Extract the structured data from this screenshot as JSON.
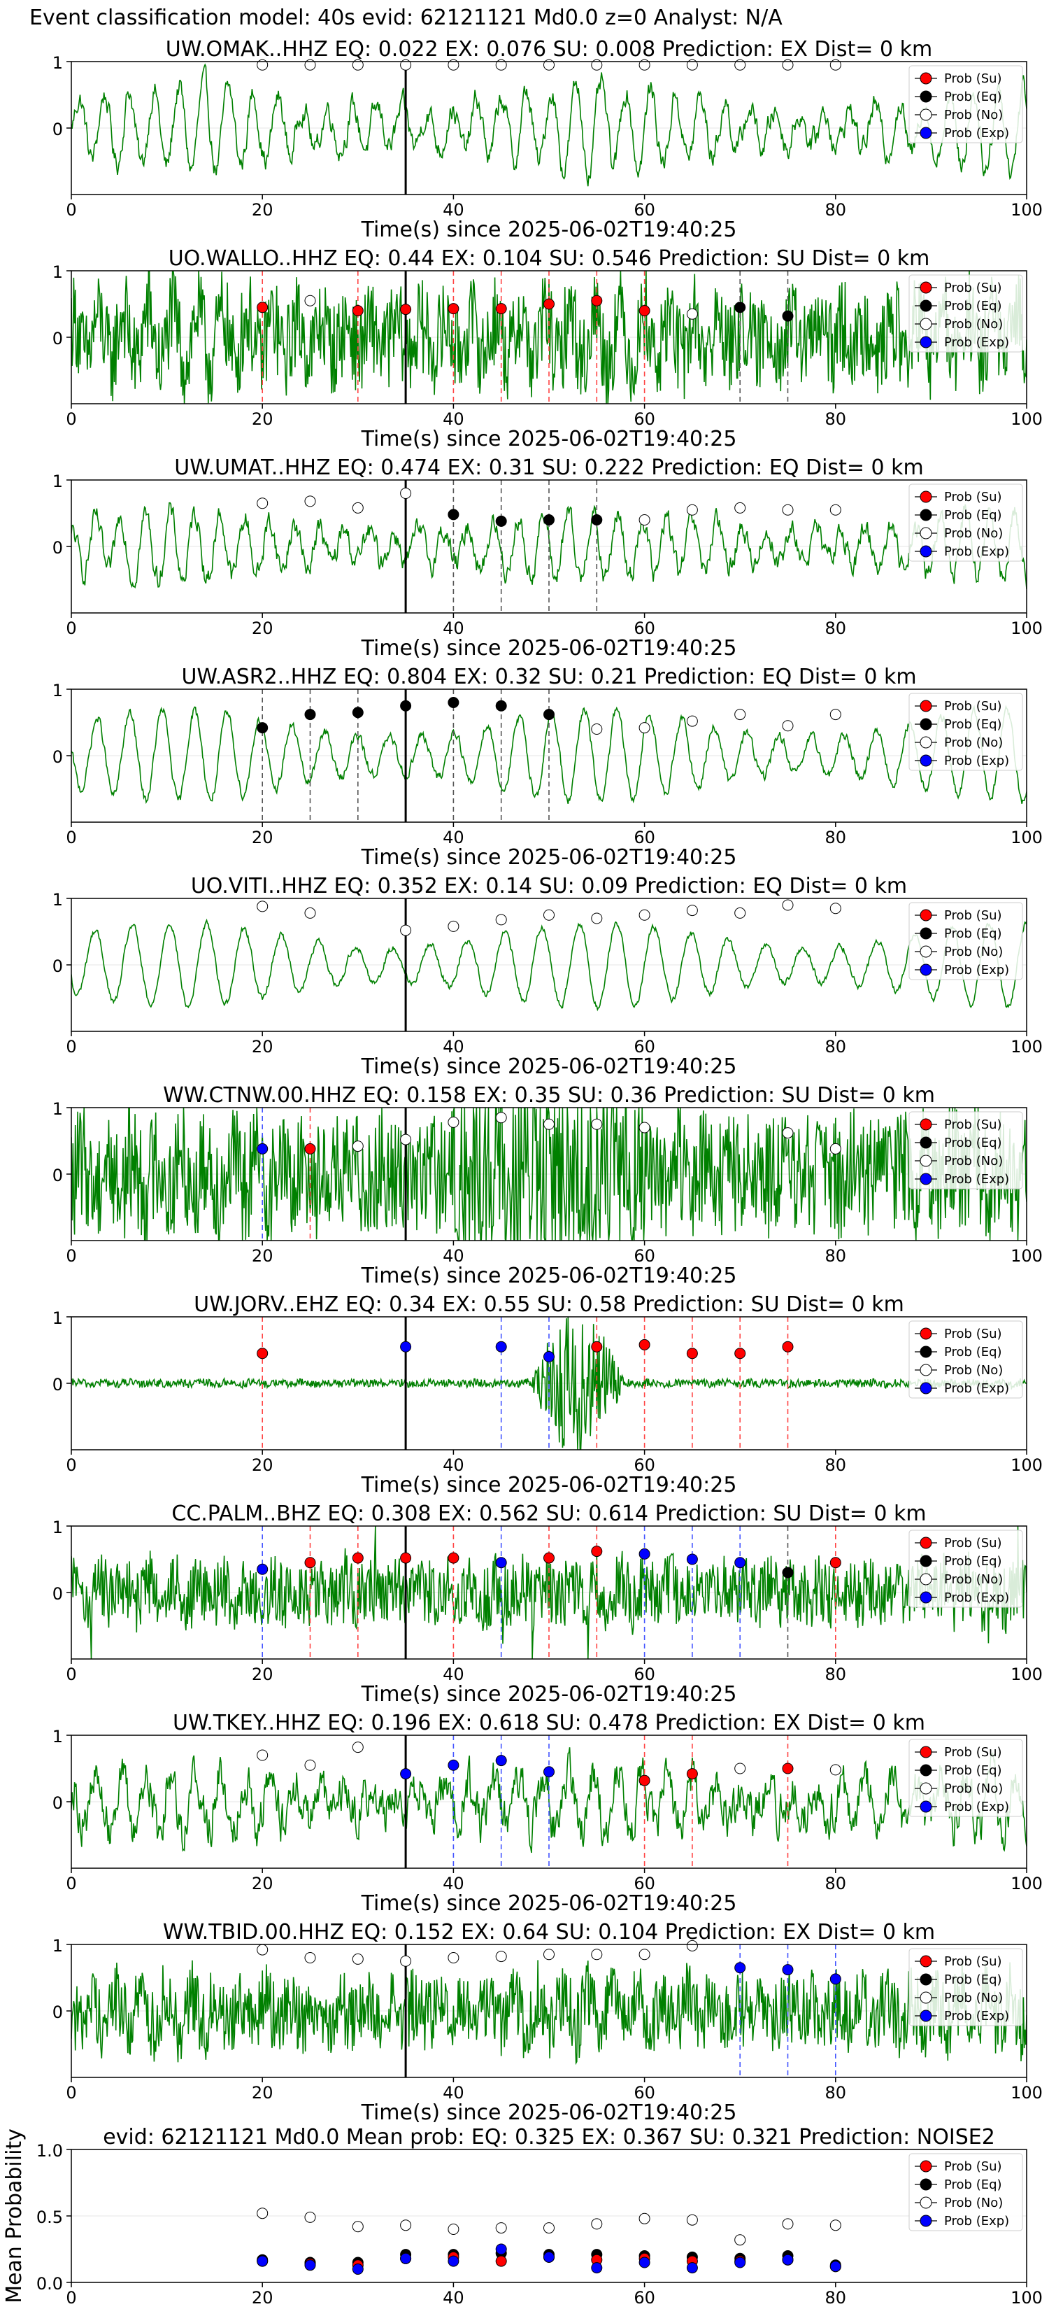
{
  "suptitle": "Event classification model: 40s evid: 62121121 Md0.0 z=0 Analyst: N/A",
  "colors": {
    "su": "#ff0000",
    "eq": "#000000",
    "no": "#ffffff",
    "exp": "#0000ff",
    "trace": "#008000"
  },
  "legend": [
    "Prob (Su)",
    "Prob (Eq)",
    "Prob (No)",
    "Prob (Exp)"
  ],
  "chart_data": [
    {
      "type": "line",
      "title": "UW.OMAK..HHZ   EQ: 0.022  EX: 0.076  SU: 0.008   Prediction: EX    Dist= 0 km",
      "xlabel": "Time(s) since 2025-06-02T19:40:25",
      "xlim": [
        0,
        100
      ],
      "ylim": [
        -1,
        1
      ],
      "xticks": [
        0,
        20,
        40,
        60,
        80,
        100
      ],
      "yticks": [
        0,
        1
      ],
      "trace": {
        "amp": 0.75,
        "noise": 0.55,
        "smooth": 4
      },
      "vline": 35,
      "points": [
        {
          "t": 20,
          "p": 0.95,
          "c": "no"
        },
        {
          "t": 25,
          "p": 0.95,
          "c": "no"
        },
        {
          "t": 30,
          "p": 0.95,
          "c": "no"
        },
        {
          "t": 35,
          "p": 0.95,
          "c": "no"
        },
        {
          "t": 40,
          "p": 0.95,
          "c": "no"
        },
        {
          "t": 45,
          "p": 0.95,
          "c": "no"
        },
        {
          "t": 50,
          "p": 0.95,
          "c": "no"
        },
        {
          "t": 55,
          "p": 0.95,
          "c": "no"
        },
        {
          "t": 60,
          "p": 0.95,
          "c": "no"
        },
        {
          "t": 65,
          "p": 0.95,
          "c": "no"
        },
        {
          "t": 70,
          "p": 0.95,
          "c": "no"
        },
        {
          "t": 75,
          "p": 0.95,
          "c": "no"
        },
        {
          "t": 80,
          "p": 0.95,
          "c": "no"
        }
      ]
    },
    {
      "type": "line",
      "title": "UO.WALLO..HHZ   EQ: 0.44  EX: 0.104  SU: 0.546   Prediction: SU    Dist= 0 km",
      "xlabel": "Time(s) since 2025-06-02T19:40:25",
      "xlim": [
        0,
        100
      ],
      "ylim": [
        -1,
        1
      ],
      "xticks": [
        0,
        20,
        40,
        60,
        80,
        100
      ],
      "yticks": [
        0,
        1
      ],
      "trace": {
        "amp": 0.4,
        "noise": 0.7,
        "smooth": 1
      },
      "vline": 35,
      "points": [
        {
          "t": 20,
          "p": 0.45,
          "c": "su"
        },
        {
          "t": 25,
          "p": 0.55,
          "c": "no"
        },
        {
          "t": 30,
          "p": 0.4,
          "c": "su"
        },
        {
          "t": 35,
          "p": 0.42,
          "c": "su"
        },
        {
          "t": 40,
          "p": 0.43,
          "c": "su"
        },
        {
          "t": 45,
          "p": 0.43,
          "c": "su"
        },
        {
          "t": 50,
          "p": 0.5,
          "c": "su"
        },
        {
          "t": 55,
          "p": 0.55,
          "c": "su"
        },
        {
          "t": 60,
          "p": 0.4,
          "c": "su"
        },
        {
          "t": 65,
          "p": 0.35,
          "c": "no"
        },
        {
          "t": 70,
          "p": 0.45,
          "c": "eq"
        },
        {
          "t": 75,
          "p": 0.32,
          "c": "eq"
        }
      ]
    },
    {
      "type": "line",
      "title": "UW.UMAT..HHZ   EQ: 0.474  EX: 0.31  SU: 0.222   Prediction: EQ    Dist= 0 km",
      "xlabel": "Time(s) since 2025-06-02T19:40:25",
      "xlim": [
        0,
        100
      ],
      "ylim": [
        -1,
        1
      ],
      "xticks": [
        0,
        20,
        40,
        60,
        80,
        100
      ],
      "yticks": [
        0,
        1
      ],
      "trace": {
        "amp": 0.55,
        "noise": 0.4,
        "smooth": 3
      },
      "vline": 35,
      "points": [
        {
          "t": 20,
          "p": 0.65,
          "c": "no"
        },
        {
          "t": 25,
          "p": 0.68,
          "c": "no"
        },
        {
          "t": 30,
          "p": 0.58,
          "c": "no"
        },
        {
          "t": 35,
          "p": 0.8,
          "c": "no"
        },
        {
          "t": 40,
          "p": 0.48,
          "c": "eq"
        },
        {
          "t": 45,
          "p": 0.38,
          "c": "eq"
        },
        {
          "t": 50,
          "p": 0.4,
          "c": "eq"
        },
        {
          "t": 55,
          "p": 0.4,
          "c": "eq"
        },
        {
          "t": 60,
          "p": 0.4,
          "c": "no"
        },
        {
          "t": 65,
          "p": 0.55,
          "c": "no"
        },
        {
          "t": 70,
          "p": 0.58,
          "c": "no"
        },
        {
          "t": 75,
          "p": 0.55,
          "c": "no"
        },
        {
          "t": 80,
          "p": 0.55,
          "c": "no"
        }
      ]
    },
    {
      "type": "line",
      "title": "UW.ASR2..HHZ   EQ: 0.804  EX: 0.32  SU: 0.21   Prediction: EQ    Dist= 0 km",
      "xlabel": "Time(s) since 2025-06-02T19:40:25",
      "xlim": [
        0,
        100
      ],
      "ylim": [
        -1,
        1
      ],
      "xticks": [
        0,
        20,
        40,
        60,
        80,
        100
      ],
      "yticks": [
        0,
        1
      ],
      "trace": {
        "amp": 0.7,
        "noise": 0.12,
        "smooth": 2,
        "period": 3.4
      },
      "vline": 35,
      "points": [
        {
          "t": 20,
          "p": 0.42,
          "c": "eq"
        },
        {
          "t": 25,
          "p": 0.62,
          "c": "eq"
        },
        {
          "t": 30,
          "p": 0.65,
          "c": "eq"
        },
        {
          "t": 35,
          "p": 0.75,
          "c": "eq"
        },
        {
          "t": 40,
          "p": 0.8,
          "c": "eq"
        },
        {
          "t": 45,
          "p": 0.75,
          "c": "eq"
        },
        {
          "t": 50,
          "p": 0.62,
          "c": "eq"
        },
        {
          "t": 55,
          "p": 0.4,
          "c": "no"
        },
        {
          "t": 60,
          "p": 0.42,
          "c": "no"
        },
        {
          "t": 65,
          "p": 0.52,
          "c": "no"
        },
        {
          "t": 70,
          "p": 0.62,
          "c": "no"
        },
        {
          "t": 75,
          "p": 0.45,
          "c": "no"
        },
        {
          "t": 80,
          "p": 0.62,
          "c": "no"
        }
      ]
    },
    {
      "type": "line",
      "title": "UO.VITI..HHZ   EQ: 0.352  EX: 0.14  SU: 0.09   Prediction: EQ    Dist= 0 km",
      "xlabel": "Time(s) since 2025-06-02T19:40:25",
      "xlim": [
        0,
        100
      ],
      "ylim": [
        -1,
        1
      ],
      "xticks": [
        0,
        20,
        40,
        60,
        80,
        100
      ],
      "yticks": [
        0,
        1
      ],
      "trace": {
        "amp": 0.65,
        "noise": 0.08,
        "smooth": 2,
        "period": 3.9
      },
      "vline": 35,
      "points": [
        {
          "t": 20,
          "p": 0.88,
          "c": "no"
        },
        {
          "t": 25,
          "p": 0.78,
          "c": "no"
        },
        {
          "t": 35,
          "p": 0.52,
          "c": "no"
        },
        {
          "t": 40,
          "p": 0.58,
          "c": "no"
        },
        {
          "t": 45,
          "p": 0.68,
          "c": "no"
        },
        {
          "t": 50,
          "p": 0.75,
          "c": "no"
        },
        {
          "t": 55,
          "p": 0.7,
          "c": "no"
        },
        {
          "t": 60,
          "p": 0.75,
          "c": "no"
        },
        {
          "t": 65,
          "p": 0.82,
          "c": "no"
        },
        {
          "t": 70,
          "p": 0.78,
          "c": "no"
        },
        {
          "t": 75,
          "p": 0.9,
          "c": "no"
        },
        {
          "t": 80,
          "p": 0.85,
          "c": "no"
        }
      ]
    },
    {
      "type": "line",
      "title": "WW.CTNW.00.HHZ   EQ: 0.158  EX: 0.35  SU: 0.36   Prediction: SU    Dist= 0 km",
      "xlabel": "Time(s) since 2025-06-02T19:40:25",
      "xlim": [
        0,
        100
      ],
      "ylim": [
        -1,
        1
      ],
      "xticks": [
        0,
        20,
        40,
        60,
        80,
        100
      ],
      "yticks": [
        0,
        1
      ],
      "trace": {
        "amp": 0.25,
        "noise": 0.9,
        "smooth": 1,
        "burst": [
          40,
          60
        ]
      },
      "vline": 35,
      "points": [
        {
          "t": 20,
          "p": 0.38,
          "c": "exp"
        },
        {
          "t": 25,
          "p": 0.38,
          "c": "su"
        },
        {
          "t": 30,
          "p": 0.42,
          "c": "no"
        },
        {
          "t": 35,
          "p": 0.52,
          "c": "no"
        },
        {
          "t": 40,
          "p": 0.78,
          "c": "no"
        },
        {
          "t": 45,
          "p": 0.85,
          "c": "no"
        },
        {
          "t": 50,
          "p": 0.75,
          "c": "no"
        },
        {
          "t": 55,
          "p": 0.75,
          "c": "no"
        },
        {
          "t": 60,
          "p": 0.7,
          "c": "no"
        },
        {
          "t": 75,
          "p": 0.62,
          "c": "no"
        },
        {
          "t": 80,
          "p": 0.38,
          "c": "no"
        }
      ]
    },
    {
      "type": "line",
      "title": "UW.JORV..EHZ   EQ: 0.34  EX: 0.55  SU: 0.58   Prediction: SU    Dist= 0 km",
      "xlabel": "Time(s) since 2025-06-02T19:40:25",
      "xlim": [
        0,
        100
      ],
      "ylim": [
        -1,
        1
      ],
      "xticks": [
        0,
        20,
        40,
        60,
        80,
        100
      ],
      "yticks": [
        0,
        1
      ],
      "trace": {
        "amp": 0.02,
        "noise": 0.06,
        "smooth": 1,
        "event": [
          48,
          58
        ]
      },
      "vline": 35,
      "points": [
        {
          "t": 20,
          "p": 0.45,
          "c": "su"
        },
        {
          "t": 35,
          "p": 0.55,
          "c": "exp"
        },
        {
          "t": 45,
          "p": 0.55,
          "c": "exp"
        },
        {
          "t": 50,
          "p": 0.4,
          "c": "exp"
        },
        {
          "t": 55,
          "p": 0.55,
          "c": "su"
        },
        {
          "t": 60,
          "p": 0.58,
          "c": "su"
        },
        {
          "t": 65,
          "p": 0.45,
          "c": "su"
        },
        {
          "t": 70,
          "p": 0.45,
          "c": "su"
        },
        {
          "t": 75,
          "p": 0.55,
          "c": "su"
        }
      ]
    },
    {
      "type": "line",
      "title": "CC.PALM..BHZ   EQ: 0.308  EX: 0.562  SU: 0.614   Prediction: SU    Dist= 0 km",
      "xlabel": "Time(s) since 2025-06-02T19:40:25",
      "xlim": [
        0,
        100
      ],
      "ylim": [
        -1,
        1
      ],
      "xticks": [
        0,
        20,
        40,
        60,
        80,
        100
      ],
      "yticks": [
        0,
        1
      ],
      "trace": {
        "amp": 0.15,
        "noise": 0.5,
        "smooth": 1,
        "spikes": true
      },
      "vline": 35,
      "points": [
        {
          "t": 20,
          "p": 0.35,
          "c": "exp"
        },
        {
          "t": 25,
          "p": 0.45,
          "c": "su"
        },
        {
          "t": 30,
          "p": 0.52,
          "c": "su"
        },
        {
          "t": 35,
          "p": 0.52,
          "c": "su"
        },
        {
          "t": 40,
          "p": 0.52,
          "c": "su"
        },
        {
          "t": 45,
          "p": 0.45,
          "c": "exp"
        },
        {
          "t": 50,
          "p": 0.52,
          "c": "su"
        },
        {
          "t": 55,
          "p": 0.62,
          "c": "su"
        },
        {
          "t": 60,
          "p": 0.58,
          "c": "exp"
        },
        {
          "t": 65,
          "p": 0.5,
          "c": "exp"
        },
        {
          "t": 70,
          "p": 0.45,
          "c": "exp"
        },
        {
          "t": 75,
          "p": 0.3,
          "c": "eq"
        },
        {
          "t": 80,
          "p": 0.45,
          "c": "su"
        }
      ]
    },
    {
      "type": "line",
      "title": "UW.TKEY..HHZ   EQ: 0.196  EX: 0.618  SU: 0.478   Prediction: EX    Dist= 0 km",
      "xlabel": "Time(s) since 2025-06-02T19:40:25",
      "xlim": [
        0,
        100
      ],
      "ylim": [
        -1,
        1
      ],
      "xticks": [
        0,
        20,
        40,
        60,
        80,
        100
      ],
      "yticks": [
        0,
        1
      ],
      "trace": {
        "amp": 0.45,
        "noise": 0.55,
        "smooth": 2
      },
      "vline": 35,
      "points": [
        {
          "t": 20,
          "p": 0.7,
          "c": "no"
        },
        {
          "t": 25,
          "p": 0.55,
          "c": "no"
        },
        {
          "t": 30,
          "p": 0.82,
          "c": "no"
        },
        {
          "t": 35,
          "p": 0.42,
          "c": "exp"
        },
        {
          "t": 40,
          "p": 0.55,
          "c": "exp"
        },
        {
          "t": 45,
          "p": 0.62,
          "c": "exp"
        },
        {
          "t": 50,
          "p": 0.45,
          "c": "exp"
        },
        {
          "t": 60,
          "p": 0.32,
          "c": "su"
        },
        {
          "t": 65,
          "p": 0.42,
          "c": "su"
        },
        {
          "t": 70,
          "p": 0.5,
          "c": "no"
        },
        {
          "t": 75,
          "p": 0.5,
          "c": "su"
        },
        {
          "t": 80,
          "p": 0.48,
          "c": "no"
        }
      ]
    },
    {
      "type": "line",
      "title": "WW.TBID.00.HHZ   EQ: 0.152  EX: 0.64  SU: 0.104   Prediction: EX    Dist= 0 km",
      "xlabel": "Time(s) since 2025-06-02T19:40:25",
      "xlim": [
        0,
        100
      ],
      "ylim": [
        -1,
        1
      ],
      "xticks": [
        0,
        20,
        40,
        60,
        80,
        100
      ],
      "yticks": [
        0,
        1
      ],
      "trace": {
        "amp": 0.25,
        "noise": 0.55,
        "smooth": 1
      },
      "vline": 35,
      "points": [
        {
          "t": 20,
          "p": 0.92,
          "c": "no"
        },
        {
          "t": 25,
          "p": 0.8,
          "c": "no"
        },
        {
          "t": 30,
          "p": 0.78,
          "c": "no"
        },
        {
          "t": 35,
          "p": 0.75,
          "c": "no"
        },
        {
          "t": 40,
          "p": 0.8,
          "c": "no"
        },
        {
          "t": 45,
          "p": 0.82,
          "c": "no"
        },
        {
          "t": 50,
          "p": 0.85,
          "c": "no"
        },
        {
          "t": 55,
          "p": 0.85,
          "c": "no"
        },
        {
          "t": 60,
          "p": 0.85,
          "c": "no"
        },
        {
          "t": 65,
          "p": 0.98,
          "c": "no"
        },
        {
          "t": 70,
          "p": 0.65,
          "c": "exp"
        },
        {
          "t": 75,
          "p": 0.62,
          "c": "exp"
        },
        {
          "t": 80,
          "p": 0.48,
          "c": "exp"
        }
      ]
    },
    {
      "type": "scatter",
      "title": "evid: 62121121  Md0.0   Mean prob:   EQ: 0.325  EX: 0.367  SU: 0.321   Prediction: NOISE2",
      "ylabel": "Mean Probability",
      "xlim": [
        0,
        100
      ],
      "ylim": [
        0,
        1
      ],
      "xticks": [
        0,
        20,
        40,
        60,
        80,
        100
      ],
      "yticks": [
        0.0,
        0.5,
        1.0
      ],
      "x": [
        20,
        25,
        30,
        35,
        40,
        45,
        50,
        55,
        60,
        65,
        70,
        75,
        80
      ],
      "series": [
        {
          "name": "Prob (No)",
          "c": "no",
          "values": [
            0.52,
            0.49,
            0.42,
            0.43,
            0.4,
            0.41,
            0.41,
            0.44,
            0.48,
            0.47,
            0.32,
            0.44,
            0.43
          ]
        },
        {
          "name": "Prob (Eq)",
          "c": "eq",
          "values": [
            0.17,
            0.15,
            0.15,
            0.21,
            0.21,
            0.22,
            0.21,
            0.21,
            0.2,
            0.19,
            0.18,
            0.2,
            0.13
          ]
        },
        {
          "name": "Prob (Su)",
          "c": "su",
          "values": [
            0.16,
            0.14,
            0.13,
            0.18,
            0.19,
            0.16,
            0.19,
            0.17,
            0.18,
            0.16,
            0.16,
            0.17,
            0.12
          ]
        },
        {
          "name": "Prob (Exp)",
          "c": "exp",
          "values": [
            0.16,
            0.13,
            0.1,
            0.18,
            0.16,
            0.25,
            0.19,
            0.11,
            0.15,
            0.11,
            0.15,
            0.17,
            0.12
          ]
        }
      ]
    }
  ]
}
